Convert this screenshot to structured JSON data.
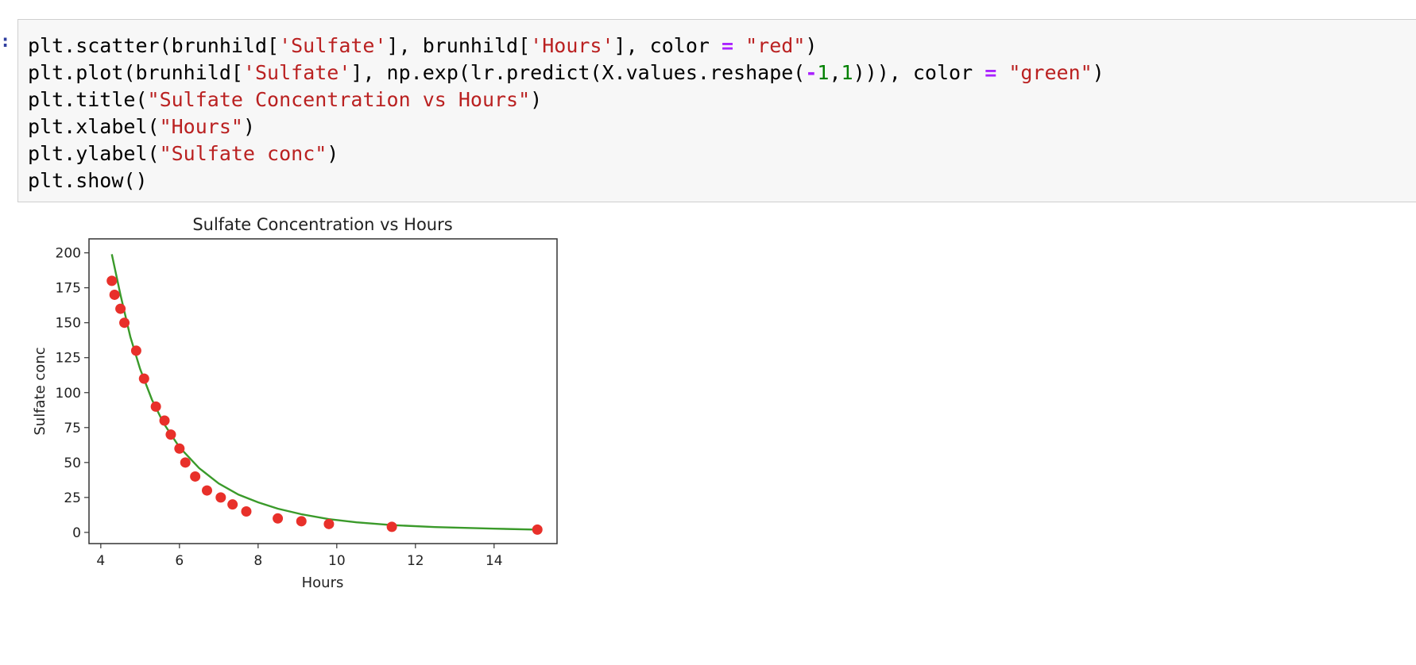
{
  "cell": {
    "prompt": ":",
    "code_lines": [
      [
        {
          "t": "plt.scatter(brunhild["
        },
        {
          "t": "'Sulfate'",
          "c": "s"
        },
        {
          "t": "], brunhild["
        },
        {
          "t": "'Hours'",
          "c": "s"
        },
        {
          "t": "], color "
        },
        {
          "t": "=",
          "c": "o"
        },
        {
          "t": " "
        },
        {
          "t": "\"red\"",
          "c": "s"
        },
        {
          "t": ")"
        }
      ],
      [
        {
          "t": "plt.plot(brunhild["
        },
        {
          "t": "'Sulfate'",
          "c": "s"
        },
        {
          "t": "], np.exp(lr.predict(X.values.reshape("
        },
        {
          "t": "-",
          "c": "o"
        },
        {
          "t": "1",
          "c": "n"
        },
        {
          "t": ","
        },
        {
          "t": "1",
          "c": "n"
        },
        {
          "t": "))), color "
        },
        {
          "t": "=",
          "c": "o"
        },
        {
          "t": " "
        },
        {
          "t": "\"green\"",
          "c": "s"
        },
        {
          "t": ")"
        }
      ],
      [
        {
          "t": "plt.title("
        },
        {
          "t": "\"Sulfate Concentration vs Hours\"",
          "c": "s"
        },
        {
          "t": ")"
        }
      ],
      [
        {
          "t": "plt.xlabel("
        },
        {
          "t": "\"Hours\"",
          "c": "s"
        },
        {
          "t": ")"
        }
      ],
      [
        {
          "t": "plt.ylabel("
        },
        {
          "t": "\"Sulfate conc\"",
          "c": "s"
        },
        {
          "t": ")"
        }
      ],
      [
        {
          "t": "plt.show()"
        }
      ]
    ]
  },
  "chart_data": {
    "type": "scatter",
    "title": "Sulfate Concentration vs Hours",
    "xlabel": "Hours",
    "ylabel": "Sulfate conc",
    "xlim": [
      3.7,
      15.6
    ],
    "ylim": [
      -8,
      210
    ],
    "xticks": [
      4,
      6,
      8,
      10,
      12,
      14
    ],
    "yticks": [
      0,
      25,
      50,
      75,
      100,
      125,
      150,
      175,
      200
    ],
    "grid": false,
    "series": [
      {
        "kind": "scatter",
        "color": "#e8302a",
        "points": [
          [
            4.28,
            180
          ],
          [
            4.35,
            170
          ],
          [
            4.5,
            160
          ],
          [
            4.6,
            150
          ],
          [
            4.9,
            130
          ],
          [
            5.1,
            110
          ],
          [
            5.4,
            90
          ],
          [
            5.62,
            80
          ],
          [
            5.78,
            70
          ],
          [
            6.0,
            60
          ],
          [
            6.15,
            50
          ],
          [
            6.4,
            40
          ],
          [
            6.7,
            30
          ],
          [
            7.05,
            25
          ],
          [
            7.35,
            20
          ],
          [
            7.7,
            15
          ],
          [
            8.5,
            10
          ],
          [
            9.1,
            8
          ],
          [
            9.8,
            6
          ],
          [
            11.4,
            4
          ],
          [
            15.1,
            2
          ]
        ]
      },
      {
        "kind": "line",
        "color": "#3a9a2a",
        "points": [
          [
            4.28,
            199
          ],
          [
            4.5,
            170
          ],
          [
            4.75,
            140
          ],
          [
            5.0,
            117
          ],
          [
            5.3,
            95
          ],
          [
            5.6,
            78
          ],
          [
            6.0,
            61
          ],
          [
            6.5,
            46
          ],
          [
            7.0,
            35
          ],
          [
            7.5,
            27
          ],
          [
            8.0,
            21.5
          ],
          [
            8.5,
            17
          ],
          [
            9.1,
            13
          ],
          [
            9.8,
            9.5
          ],
          [
            10.5,
            7.2
          ],
          [
            11.4,
            5.2
          ],
          [
            12.5,
            3.8
          ],
          [
            14.0,
            2.7
          ],
          [
            15.1,
            2
          ]
        ]
      }
    ]
  }
}
